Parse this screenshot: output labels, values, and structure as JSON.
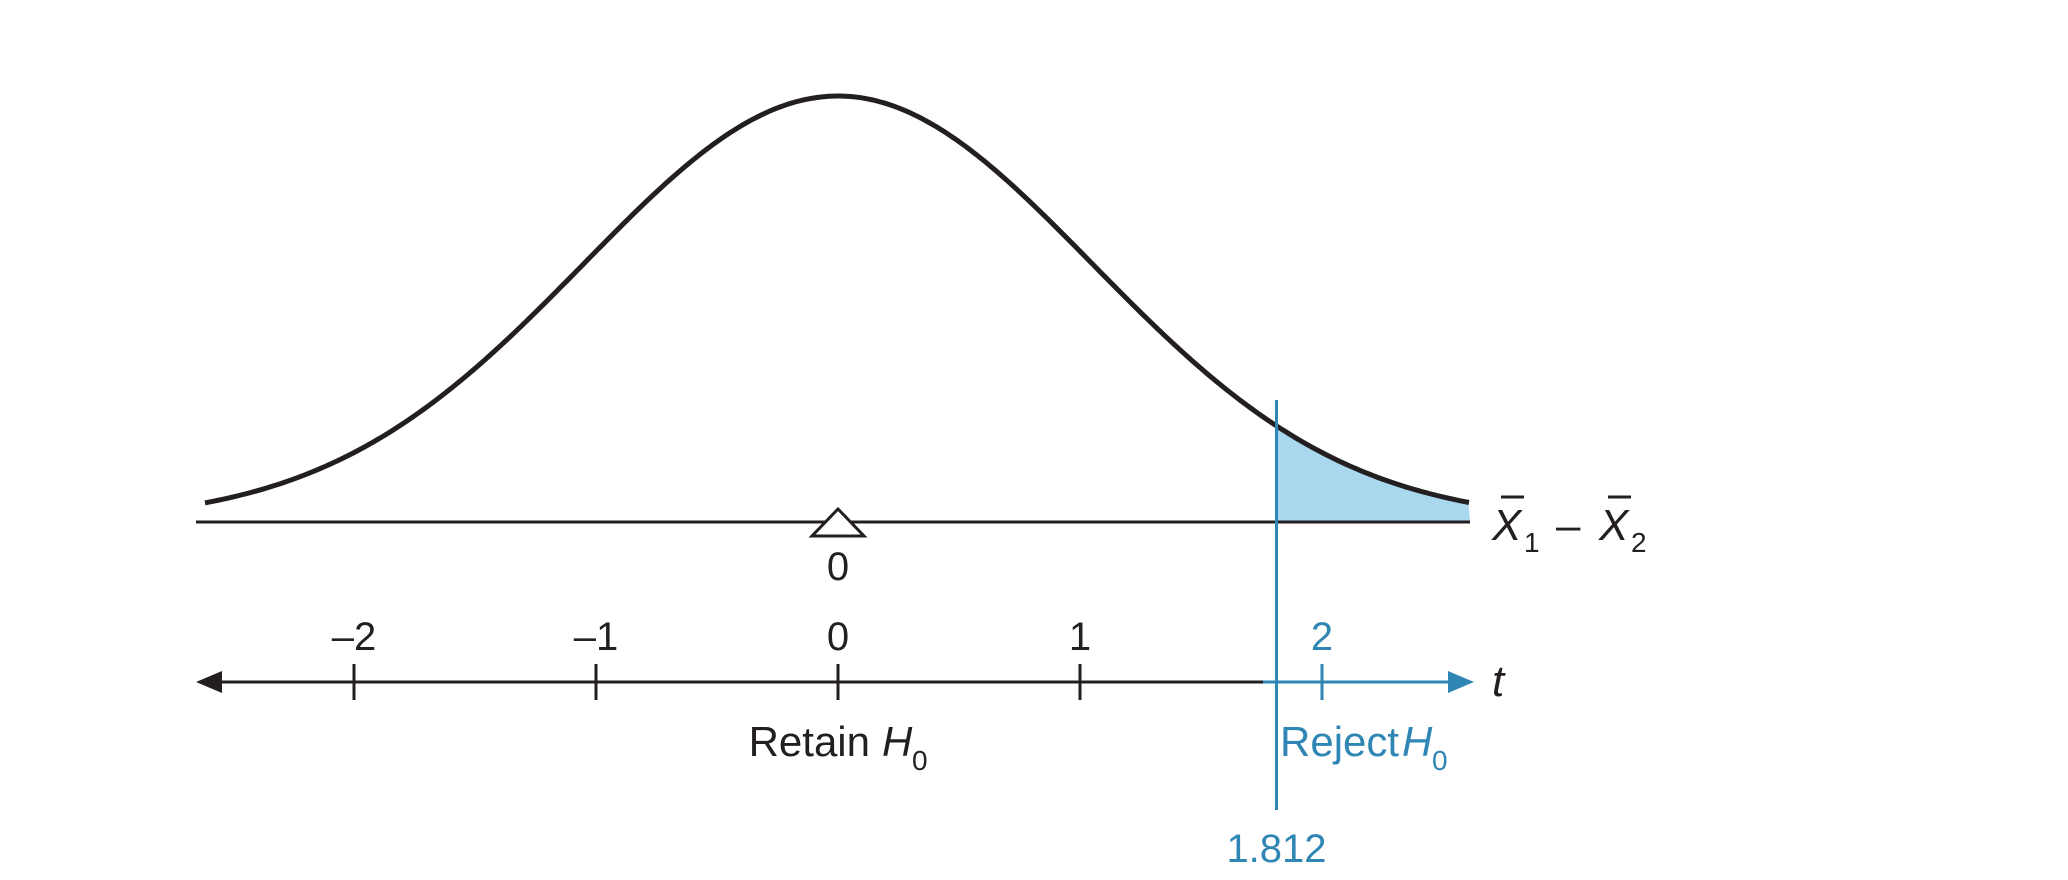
{
  "figure": {
    "colors": {
      "ink": "#231f20",
      "accent": "#2f86b4",
      "shade": "#a9d7ee"
    },
    "mean_axis": {
      "label_x": "X",
      "label_sub1": "1",
      "label_minus": "–",
      "label_x2": "X",
      "label_sub2": "2",
      "mean_tick": "0"
    },
    "t_axis": {
      "label": "t",
      "ticks": [
        "–2",
        "–1",
        "0",
        "1",
        "2"
      ],
      "critical_value": "1.812"
    },
    "regions": {
      "retain_word": "Retain",
      "reject_word": "Reject",
      "h": "H",
      "sub": "0"
    },
    "mean_marker_icon": "triangle-icon",
    "arrow_icons": [
      "arrow-left-icon",
      "arrow-right-icon"
    ]
  },
  "chart_data": {
    "type": "area",
    "distribution": "t",
    "x_ticks": [
      -2,
      -1,
      0,
      1,
      2
    ],
    "critical_t": 1.812,
    "rejection_region": "right tail",
    "xlabel": "t"
  }
}
